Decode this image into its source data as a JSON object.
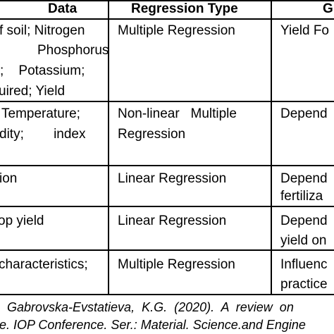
{
  "table": {
    "headers": {
      "data": "Data",
      "regression_type": "Regression Type",
      "goal": "G"
    },
    "rows": [
      {
        "data_lines": [
          "f soil; Nitrogen",
          "Phosphorus",
          ";    Potassium;",
          "uired; Yield"
        ],
        "regression_type_lines": [
          "Multiple Regression"
        ],
        "goal_lines": [
          "Yield Fo"
        ]
      },
      {
        "data_lines": [
          "Temperature;",
          "dity;        index"
        ],
        "regression_type_lines": [
          "Non-linear   Multiple",
          "Regression"
        ],
        "goal_lines": [
          "Depend"
        ]
      },
      {
        "data_lines": [
          "ion"
        ],
        "regression_type_lines": [
          "Linear Regression"
        ],
        "goal_lines": [
          "Depend",
          "fertiliza"
        ]
      },
      {
        "data_lines": [
          "op yield"
        ],
        "regression_type_lines": [
          "Linear Regression"
        ],
        "goal_lines": [
          "Depend",
          "yield on"
        ]
      },
      {
        "data_lines": [
          "characteristics;"
        ],
        "regression_type_lines": [
          "Multiple Regression"
        ],
        "goal_lines": [
          "Influenc",
          "practice"
        ]
      }
    ]
  },
  "caption": {
    "line1": "Gabrovska-Evstatieva,  K.G.  (2020).  A  review  on",
    "line2": "e. IOP Conference. Ser.: Material. Science.and Engine"
  }
}
